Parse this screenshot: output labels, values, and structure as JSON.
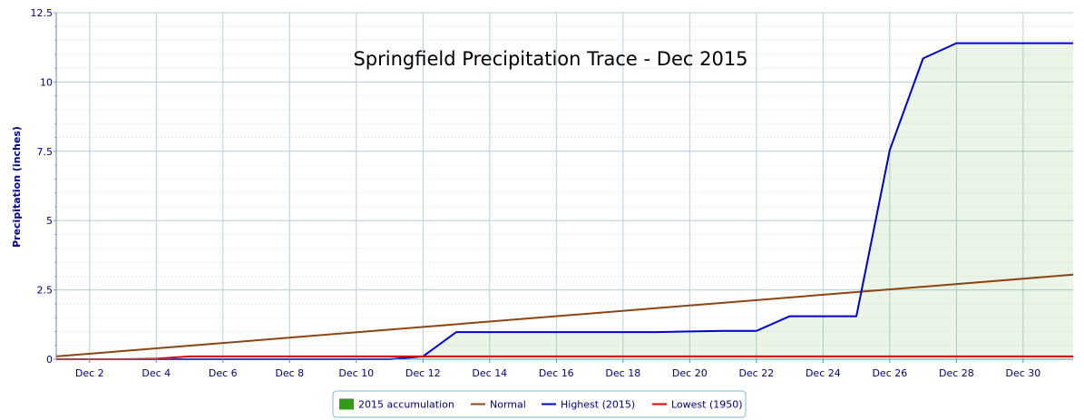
{
  "chart_data": {
    "type": "line",
    "title": "Springfield Precipitation Trace - Dec 2015",
    "ylabel": "Precipitation (inches)",
    "xlabel": "",
    "ylim": [
      0,
      12.5
    ],
    "y_ticks": [
      "0",
      "2.5",
      "5",
      "7.5",
      "10",
      "12.5"
    ],
    "y_tick_values": [
      0,
      2.5,
      5,
      7.5,
      10,
      12.5
    ],
    "xlim": [
      1,
      31.5
    ],
    "x_ticks": [
      "Dec 2",
      "Dec 4",
      "Dec 6",
      "Dec 8",
      "Dec 10",
      "Dec 12",
      "Dec 14",
      "Dec 16",
      "Dec 18",
      "Dec 20",
      "Dec 22",
      "Dec 24",
      "Dec 26",
      "Dec 28",
      "Dec 30"
    ],
    "x_tick_values": [
      2,
      4,
      6,
      8,
      10,
      12,
      14,
      16,
      18,
      20,
      22,
      24,
      26,
      28,
      30
    ],
    "grid": true,
    "legend_position": "bottom-center",
    "series": [
      {
        "name": "2015 accumulation",
        "kind": "area",
        "color": "#339a1a",
        "fill_opacity": 0.1,
        "x": [
          1,
          2,
          3,
          4,
          5,
          6,
          7,
          8,
          9,
          10,
          11,
          12,
          13,
          14,
          15,
          16,
          17,
          18,
          19,
          20,
          21,
          22,
          23,
          24,
          25,
          26,
          27,
          28,
          29,
          30,
          31,
          31.5
        ],
        "values": [
          0,
          0,
          0,
          0,
          0,
          0,
          0,
          0,
          0,
          0,
          0,
          0.1,
          0.98,
          0.98,
          0.98,
          0.98,
          0.98,
          0.98,
          0.98,
          1.0,
          1.02,
          1.02,
          1.55,
          1.55,
          1.55,
          7.55,
          10.85,
          11.4,
          11.4,
          11.4,
          11.4,
          11.4
        ]
      },
      {
        "name": "Normal",
        "kind": "line",
        "color": "#8b4513",
        "x": [
          1,
          31.5
        ],
        "values": [
          0.1,
          3.05
        ]
      },
      {
        "name": "Highest (2015)",
        "kind": "line",
        "color": "#0000cc",
        "x": [
          1,
          2,
          3,
          4,
          5,
          6,
          7,
          8,
          9,
          10,
          11,
          12,
          13,
          14,
          15,
          16,
          17,
          18,
          19,
          20,
          21,
          22,
          23,
          24,
          25,
          26,
          27,
          28,
          29,
          30,
          31,
          31.5
        ],
        "values": [
          0,
          0,
          0,
          0,
          0,
          0,
          0,
          0,
          0,
          0,
          0,
          0.1,
          0.98,
          0.98,
          0.98,
          0.98,
          0.98,
          0.98,
          0.98,
          1.0,
          1.02,
          1.02,
          1.55,
          1.55,
          1.55,
          7.55,
          10.85,
          11.4,
          11.4,
          11.4,
          11.4,
          11.4
        ]
      },
      {
        "name": "Lowest (1950)",
        "kind": "line",
        "color": "#dd0000",
        "x": [
          1,
          2,
          3,
          4,
          5,
          6,
          7,
          8,
          9,
          10,
          11,
          12,
          13,
          14,
          15,
          16,
          17,
          18,
          19,
          20,
          21,
          22,
          23,
          24,
          25,
          26,
          27,
          28,
          29,
          30,
          31,
          31.5
        ],
        "values": [
          0,
          0,
          0,
          0.02,
          0.1,
          0.1,
          0.1,
          0.1,
          0.1,
          0.1,
          0.1,
          0.1,
          0.1,
          0.1,
          0.1,
          0.1,
          0.1,
          0.1,
          0.1,
          0.1,
          0.1,
          0.1,
          0.1,
          0.1,
          0.1,
          0.1,
          0.1,
          0.1,
          0.1,
          0.1,
          0.1,
          0.1
        ]
      }
    ]
  }
}
